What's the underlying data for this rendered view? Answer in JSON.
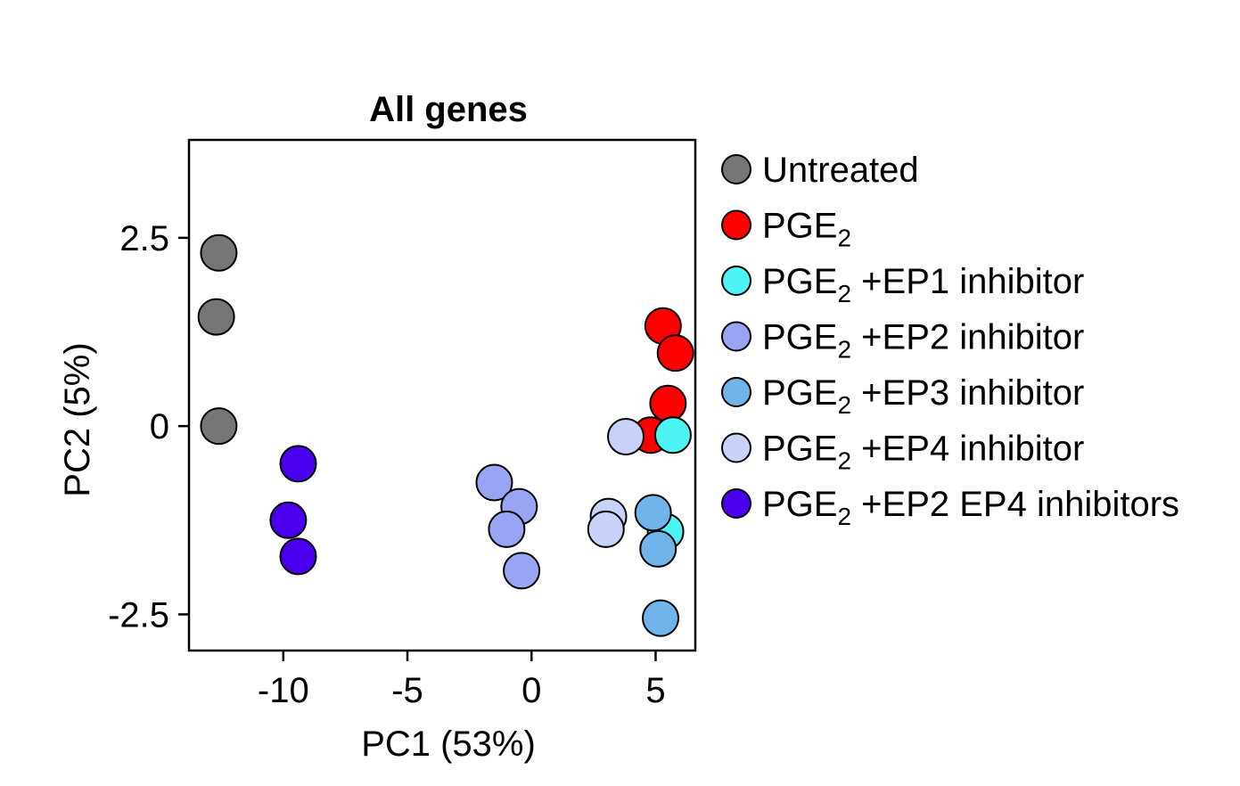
{
  "chart_data": {
    "type": "scatter",
    "title": "All genes",
    "xlabel": "PC1 (53%)",
    "ylabel": "PC2 (5%)",
    "xlim": [
      -13.8,
      6.6
    ],
    "ylim": [
      -2.98,
      3.8
    ],
    "x_ticks": [
      -10,
      -5,
      0,
      5
    ],
    "x_tick_labels": [
      "-10",
      "-5",
      "0",
      "5"
    ],
    "y_ticks": [
      2.5,
      0,
      -2.5
    ],
    "y_tick_labels": [
      "2.5",
      "0",
      "-2.5"
    ],
    "grid": false,
    "legend_position": "right",
    "series": [
      {
        "name": "Untreated",
        "label_main": "Untreated",
        "label_sub": "",
        "label_suffix": "",
        "color": "#767676",
        "points": [
          [
            -12.6,
            2.3
          ],
          [
            -12.7,
            1.45
          ],
          [
            -12.6,
            0.0
          ]
        ]
      },
      {
        "name": "PGE2",
        "label_main": "PGE",
        "label_sub": "2",
        "label_suffix": "",
        "color": "#ff0000",
        "points": [
          [
            5.3,
            1.33
          ],
          [
            5.8,
            0.97
          ],
          [
            5.5,
            0.3
          ],
          [
            4.8,
            -0.12
          ]
        ]
      },
      {
        "name": "PGE2 +EP1 inhibitor",
        "label_main": "PGE",
        "label_sub": "2",
        "label_suffix": " +EP1 inhibitor",
        "color": "#4cf4f4",
        "points": [
          [
            5.7,
            -0.12
          ],
          [
            5.4,
            -1.4
          ]
        ]
      },
      {
        "name": "PGE2 +EP2 inhibitor",
        "label_main": "PGE",
        "label_sub": "2",
        "label_suffix": " +EP2 inhibitor",
        "color": "#9aa4f4",
        "points": [
          [
            -1.5,
            -0.75
          ],
          [
            -0.5,
            -1.07
          ],
          [
            -1.0,
            -1.37
          ],
          [
            -0.4,
            -1.92
          ]
        ]
      },
      {
        "name": "PGE2 +EP3 inhibitor",
        "label_main": "PGE",
        "label_sub": "2",
        "label_suffix": " +EP3 inhibitor",
        "color": "#70b4ec",
        "points": [
          [
            4.9,
            -1.15
          ],
          [
            5.1,
            -1.63
          ],
          [
            5.2,
            -2.55
          ]
        ]
      },
      {
        "name": "PGE2 +EP4 inhibitor",
        "label_main": "PGE",
        "label_sub": "2",
        "label_suffix": " +EP4 inhibitor",
        "color": "#c8d2fa",
        "points": [
          [
            3.8,
            -0.14
          ],
          [
            3.1,
            -1.2
          ],
          [
            3.0,
            -1.37
          ]
        ]
      },
      {
        "name": "PGE2 +EP2 EP4 inhibitors",
        "label_main": "PGE",
        "label_sub": "2",
        "label_suffix": " +EP2 EP4 inhibitors",
        "color": "#4a00ee",
        "points": [
          [
            -9.4,
            -0.5
          ],
          [
            -9.8,
            -1.25
          ],
          [
            -9.4,
            -1.73
          ]
        ]
      }
    ]
  }
}
